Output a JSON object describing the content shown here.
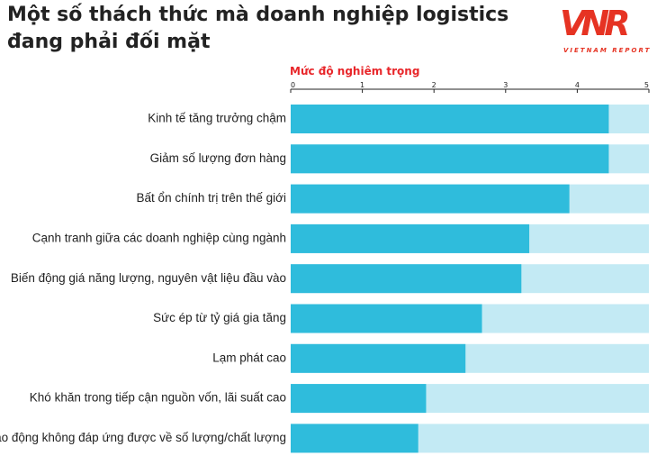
{
  "header": {
    "title": "Một số thách thức mà doanh nghiệp logistics đang phải đối mặt",
    "logo_mark": "VNR",
    "logo_text": "VIETNAM REPORT"
  },
  "colors": {
    "bar": "#2fbcdc",
    "bar_track": "#c3eaf4",
    "accent": "#e8262a",
    "text": "#222222"
  },
  "chart_data": {
    "type": "bar",
    "orientation": "horizontal",
    "title": "Một số thách thức mà doanh nghiệp logistics đang phải đối mặt",
    "xlabel": "Mức độ nghiêm trọng",
    "ylabel": "",
    "xlim": [
      0,
      5
    ],
    "ticks": [
      0,
      1,
      2,
      3,
      4,
      5
    ],
    "grid": false,
    "categories": [
      "Kinh tế tăng trưởng chậm",
      "Giảm số lượng đơn hàng",
      "Bất ổn chính trị trên thế giới",
      "Cạnh tranh giữa các doanh nghiệp cùng ngành",
      "Biến động giá năng lượng, nguyên vật liệu đầu vào",
      "Sức ép từ tỷ giá gia tăng",
      "Lạm phát cao",
      "Khó khăn trong tiếp cận nguồn vốn, lãi suất cao",
      "Lao động không đáp ứng được về số lượng/chất lượng"
    ],
    "values": [
      4.44,
      4.44,
      3.89,
      3.33,
      3.22,
      2.67,
      2.44,
      1.89,
      1.78
    ]
  }
}
